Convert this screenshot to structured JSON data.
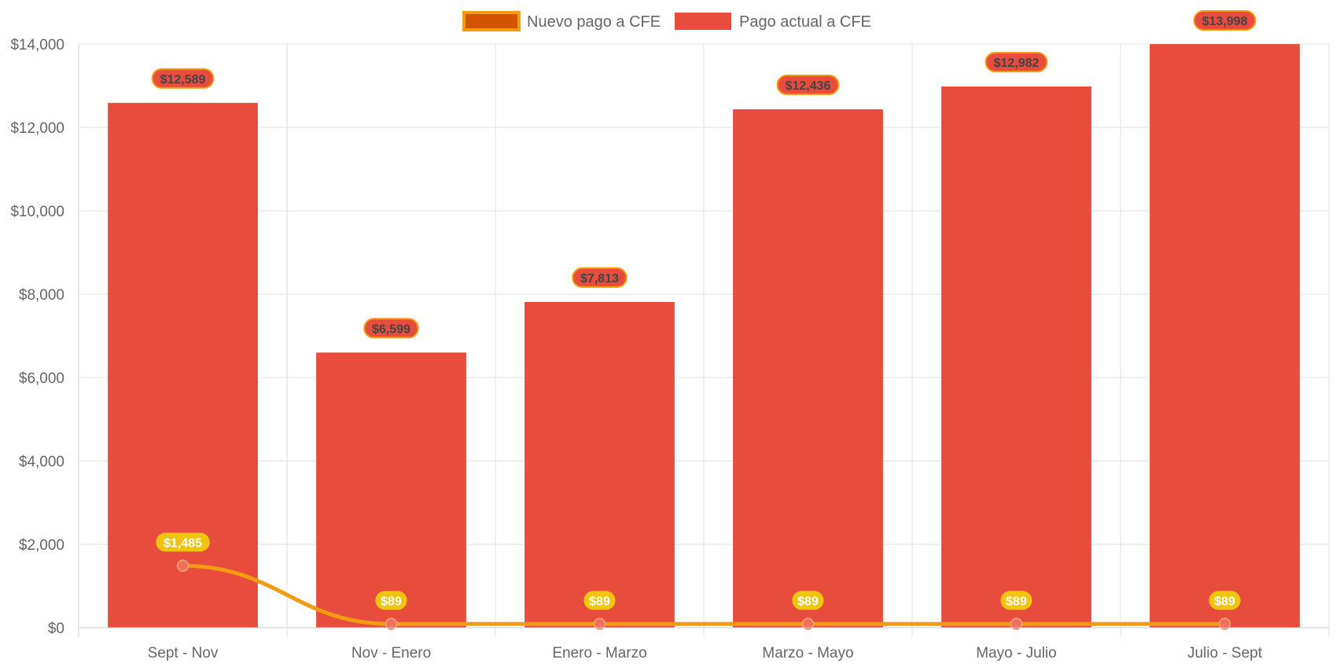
{
  "chart_data": {
    "type": "bar",
    "categories": [
      "Sept - Nov",
      "Nov - Enero",
      "Enero - Marzo",
      "Marzo - Mayo",
      "Mayo - Julio",
      "Julio - Sept"
    ],
    "ylim": [
      0,
      14000
    ],
    "y_ticks": [
      0,
      2000,
      4000,
      6000,
      8000,
      10000,
      12000,
      14000
    ],
    "y_tick_labels": [
      "$0",
      "$2,000",
      "$4,000",
      "$6,000",
      "$8,000",
      "$10,000",
      "$12,000",
      "$14,000"
    ],
    "grid": true,
    "legend_position": "top-center",
    "series": [
      {
        "name": "Nuevo pago a CFE",
        "type": "line",
        "values": [
          1485,
          89,
          89,
          89,
          89,
          89
        ],
        "labels": [
          "$1,485",
          "$89",
          "$89",
          "$89",
          "$89",
          "$89"
        ],
        "color": "#f39c12",
        "legend_fill": "#d35400",
        "point_color": "#f1705a",
        "label_bg": "#f1c40f"
      },
      {
        "name": "Pago actual a CFE",
        "type": "bar",
        "values": [
          12589,
          6599,
          7813,
          12436,
          12982,
          13998
        ],
        "labels": [
          "$12,589",
          "$6,599",
          "$7,813",
          "$12,436",
          "$12,982",
          "$13,998"
        ],
        "color": "#e74c3c",
        "label_border": "#f39c12"
      }
    ]
  }
}
